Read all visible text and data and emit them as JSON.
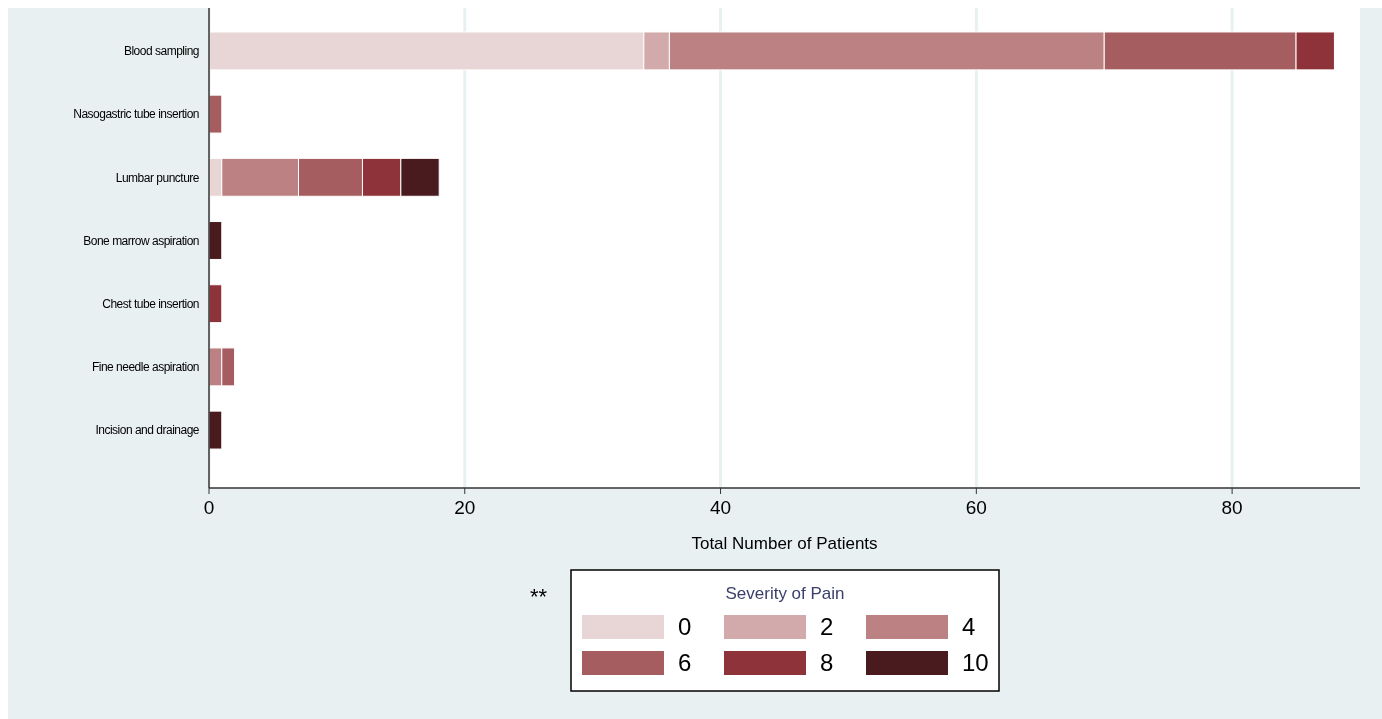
{
  "chart_data": {
    "type": "bar",
    "orientation": "horizontal",
    "stacked": true,
    "xlabel": "Total Number of Patients",
    "legend_title": "Severity of Pain",
    "legend": "bottom",
    "grid": "x",
    "xlim": [
      0,
      90
    ],
    "xticks": [
      0,
      20,
      40,
      60,
      80
    ],
    "categories": [
      "Blood sampling",
      "Nasogastric tube insertion",
      "Lumbar puncture",
      "Bone marrow aspiration",
      "Chest tube insertion",
      "Fine needle aspiration",
      "Incision and drainage"
    ],
    "series": [
      {
        "name": "0",
        "color": "#e8d6d7",
        "values": [
          34,
          0,
          1,
          0,
          0,
          0,
          0
        ]
      },
      {
        "name": "2",
        "color": "#d3aaab",
        "values": [
          2,
          0,
          0,
          0,
          0,
          0,
          0
        ]
      },
      {
        "name": "4",
        "color": "#bc8283",
        "values": [
          34,
          0,
          6,
          0,
          0,
          1,
          0
        ]
      },
      {
        "name": "6",
        "color": "#a55d5f",
        "values": [
          15,
          1,
          5,
          0,
          0,
          1,
          0
        ]
      },
      {
        "name": "8",
        "color": "#8e333a",
        "values": [
          3,
          0,
          3,
          0,
          1,
          0,
          0
        ]
      },
      {
        "name": "10",
        "color": "#4a1b1e",
        "values": [
          0,
          0,
          3,
          1,
          0,
          0,
          1
        ]
      }
    ],
    "annotations": [
      "**"
    ]
  }
}
